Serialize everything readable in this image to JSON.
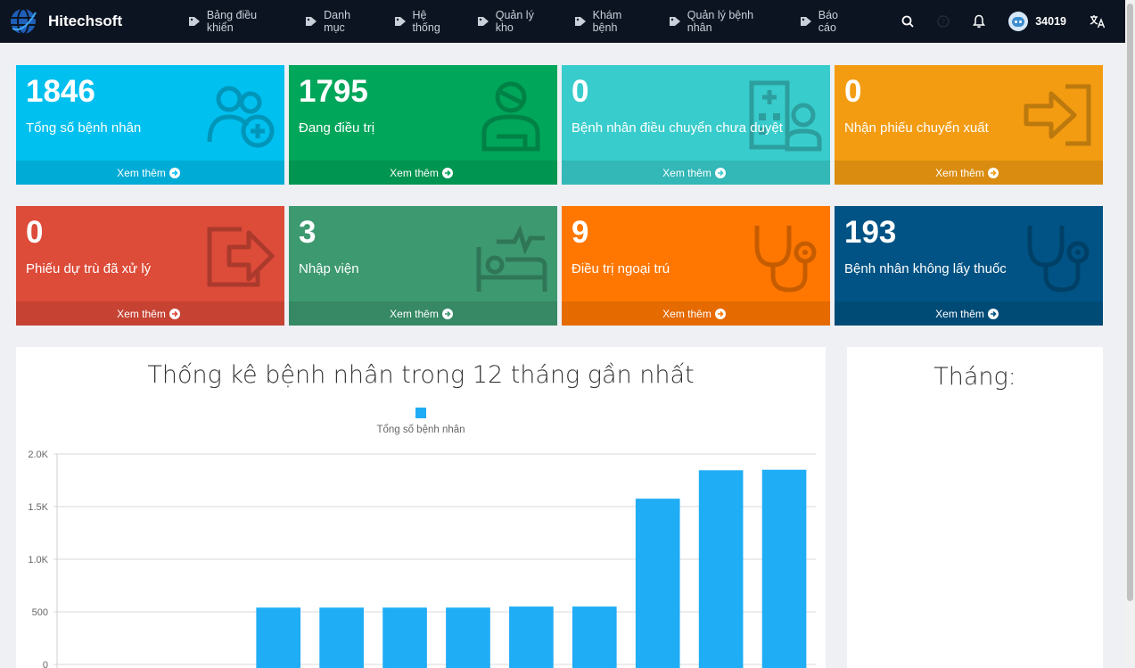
{
  "brand": {
    "name": "Hitechsoft"
  },
  "menu": [
    {
      "label": "Bảng điều khiển"
    },
    {
      "label": "Danh mục"
    },
    {
      "label": "Hệ thống"
    },
    {
      "label": "Quản lý kho"
    },
    {
      "label": "Khám bệnh"
    },
    {
      "label": "Quản lý bệnh nhân"
    },
    {
      "label": "Báo cáo"
    }
  ],
  "user": {
    "name": "34019"
  },
  "cards": [
    {
      "value": "1846",
      "label": "Tổng số bệnh nhân",
      "footer": "Xem thêm",
      "color": "#00c0ef",
      "icon": "user-plus-icon"
    },
    {
      "value": "1795",
      "label": "Đang điều trị",
      "footer": "Xem thêm",
      "color": "#00a65a",
      "icon": "user-injured-icon"
    },
    {
      "value": "0",
      "label": "Bệnh nhân điều chuyển chưa duyệt",
      "footer": "Xem thêm",
      "color": "#39cccc",
      "icon": "hospital-user-icon"
    },
    {
      "value": "0",
      "label": "Nhận phiếu chuyển xuất",
      "footer": "Xem thêm",
      "color": "#f39c12",
      "icon": "sign-in-icon"
    },
    {
      "value": "0",
      "label": "Phiếu dự trù đã xử lý",
      "footer": "Xem thêm",
      "color": "#dd4b39",
      "icon": "share-square-icon"
    },
    {
      "value": "3",
      "label": "Nhập viện",
      "footer": "Xem thêm",
      "color": "#3d9970",
      "icon": "procedures-icon"
    },
    {
      "value": "9",
      "label": "Điều trị ngoại trú",
      "footer": "Xem thêm",
      "color": "#ff7701",
      "icon": "stethoscope-icon"
    },
    {
      "value": "193",
      "label": "Bệnh nhân không lấy thuốc",
      "footer": "Xem thêm",
      "color": "#005384",
      "icon": "stethoscope-icon"
    }
  ],
  "chart_data": {
    "type": "bar",
    "title": "Thống kê bệnh nhân trong 12 tháng gần nhất",
    "series": [
      {
        "name": "Tổng số bệnh nhân",
        "color": "#1fadf5",
        "values": [
          0,
          0,
          0,
          540,
          540,
          540,
          540,
          550,
          550,
          1575,
          1845,
          1850
        ]
      }
    ],
    "y_ticks": [
      "0",
      "500",
      "1.0K",
      "1.5K",
      "2.0K"
    ],
    "ylim": [
      0,
      2000
    ],
    "grid": true,
    "legend": "top"
  },
  "side_panel": {
    "title": "Tháng:"
  }
}
